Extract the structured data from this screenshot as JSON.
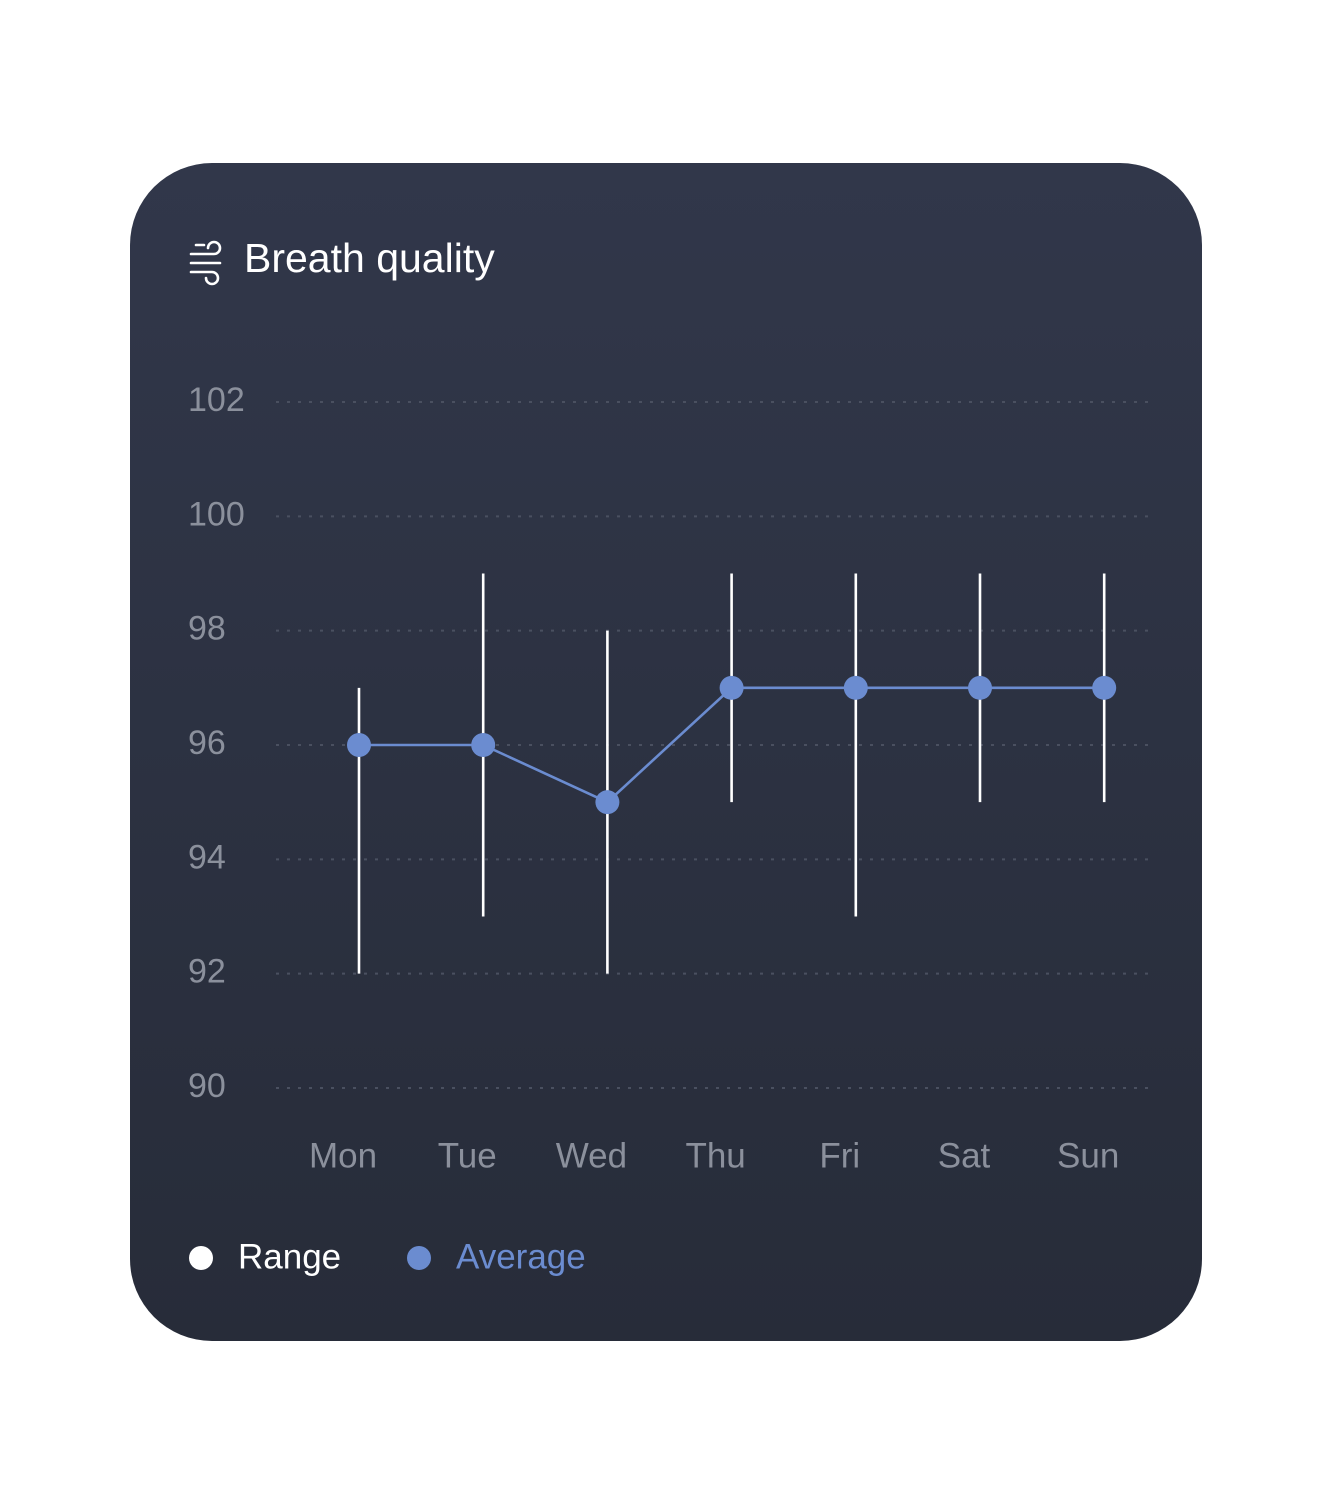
{
  "chart_data": {
    "type": "range-line",
    "title": "Breath quality",
    "categories": [
      "Mon",
      "Tue",
      "Wed",
      "Thu",
      "Fri",
      "Sat",
      "Sun"
    ],
    "series": [
      {
        "name": "Range",
        "color": "#ffffff",
        "low": [
          92,
          93,
          92,
          95,
          93,
          95,
          95
        ],
        "high": [
          97,
          99,
          98,
          99,
          99,
          99,
          99
        ]
      },
      {
        "name": "Average",
        "color": "#6b8cd0",
        "values": [
          96,
          96,
          95,
          97,
          97,
          97,
          97
        ]
      }
    ],
    "ylim": [
      90,
      102
    ],
    "yticks": [
      90,
      92,
      94,
      96,
      98,
      100,
      102
    ],
    "grid": true
  }
}
